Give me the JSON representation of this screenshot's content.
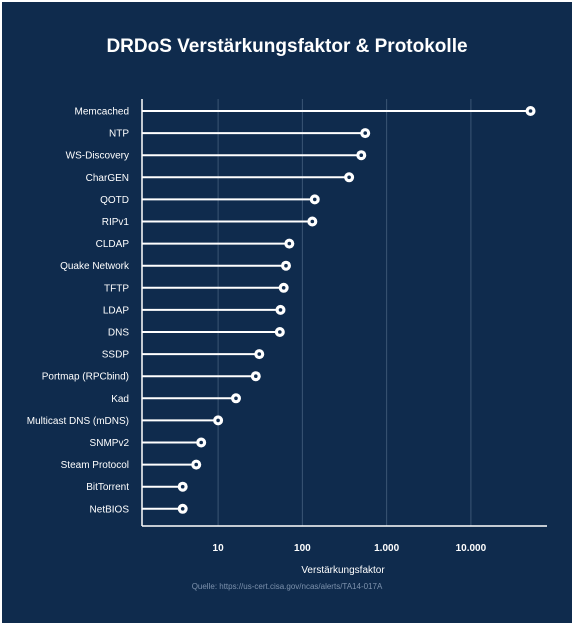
{
  "colors": {
    "background": "#0f2b4d",
    "line": "#ffffff",
    "grid": "#3b5675",
    "source_text": "#7d92ad"
  },
  "chart_data": {
    "type": "lollipop",
    "title": "DRDoS Verstärkungsfaktor & Protokolle",
    "xlabel": "Verstärkungsfaktor",
    "ylabel": "",
    "x_scale": "log",
    "xlim": [
      1.25,
      80000
    ],
    "xticks": [
      {
        "value": 10,
        "label": "10"
      },
      {
        "value": 100,
        "label": "100"
      },
      {
        "value": 1000,
        "label": "1.000"
      },
      {
        "value": 10000,
        "label": "10.000"
      }
    ],
    "grid": "vertical",
    "categories": [
      "Memcached",
      "NTP",
      "WS-Discovery",
      "CharGEN",
      "QOTD",
      "RIPv1",
      "CLDAP",
      "Quake Network",
      "TFTP",
      "LDAP",
      "DNS",
      "SSDP",
      "Portmap (RPCbind)",
      "Kad",
      "Multicast DNS (mDNS)",
      "SNMPv2",
      "Steam Protocol",
      "BitTorrent",
      "NetBIOS"
    ],
    "values": [
      51000,
      556.9,
      500,
      358.8,
      140.3,
      131.24,
      70,
      63.9,
      60,
      55,
      54,
      30.8,
      28,
      16.3,
      10,
      6.3,
      5.5,
      3.8,
      3.8
    ]
  },
  "source": "Quelle: https://us-cert.cisa.gov/ncas/alerts/TA14-017A"
}
